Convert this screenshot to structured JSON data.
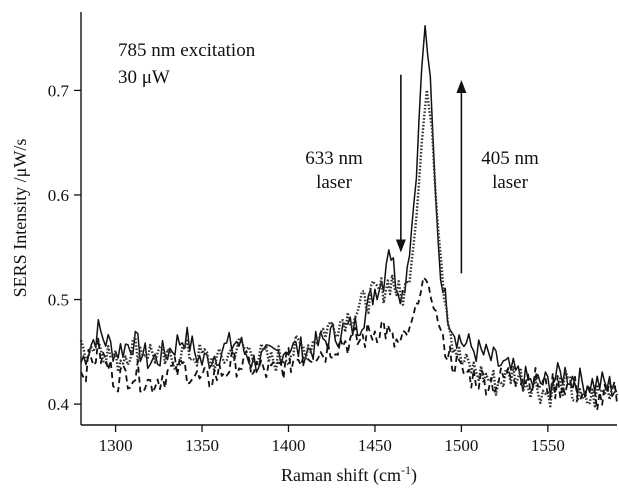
{
  "chart_data": {
    "type": "line",
    "title": "",
    "xlabel": "Raman shift (cm",
    "xlabel_sup": "-1",
    "xlabel_close": ")",
    "ylabel": "SERS Intensity /μW/s",
    "xlim": [
      1280,
      1590
    ],
    "ylim": [
      0.38,
      0.775
    ],
    "x_ticks": [
      1300,
      1350,
      1400,
      1450,
      1500,
      1550
    ],
    "y_ticks": [
      0.4,
      0.5,
      0.6,
      0.7
    ],
    "grid": false,
    "legend": "none",
    "annotations": [
      {
        "id": "excitation",
        "text": "785 nm excitation"
      },
      {
        "id": "power",
        "text": "30 μW"
      },
      {
        "id": "laser633_line1",
        "text": "633 nm"
      },
      {
        "id": "laser633_line2",
        "text": "laser"
      },
      {
        "id": "laser405_line1",
        "text": "405 nm"
      },
      {
        "id": "laser405_line2",
        "text": "laser"
      }
    ],
    "arrows": [
      {
        "id": "down-arrow",
        "x": 1465,
        "y_from": 0.715,
        "y_to": 0.545,
        "direction": "down"
      },
      {
        "id": "up-arrow",
        "x": 1500,
        "y_from": 0.525,
        "y_to": 0.71,
        "direction": "up"
      }
    ],
    "series": [
      {
        "style": "solid",
        "color": "#111111",
        "points": [
          [
            1280,
            0.44
          ],
          [
            1290,
            0.47
          ],
          [
            1300,
            0.45
          ],
          [
            1310,
            0.46
          ],
          [
            1320,
            0.44
          ],
          [
            1330,
            0.45
          ],
          [
            1340,
            0.465
          ],
          [
            1350,
            0.44
          ],
          [
            1360,
            0.45
          ],
          [
            1370,
            0.46
          ],
          [
            1380,
            0.44
          ],
          [
            1390,
            0.445
          ],
          [
            1400,
            0.455
          ],
          [
            1410,
            0.45
          ],
          [
            1420,
            0.46
          ],
          [
            1430,
            0.47
          ],
          [
            1440,
            0.475
          ],
          [
            1445,
            0.49
          ],
          [
            1450,
            0.51
          ],
          [
            1455,
            0.52
          ],
          [
            1458,
            0.555
          ],
          [
            1462,
            0.52
          ],
          [
            1466,
            0.505
          ],
          [
            1470,
            0.545
          ],
          [
            1474,
            0.62
          ],
          [
            1477,
            0.72
          ],
          [
            1479,
            0.76
          ],
          [
            1482,
            0.71
          ],
          [
            1485,
            0.6
          ],
          [
            1488,
            0.52
          ],
          [
            1492,
            0.49
          ],
          [
            1496,
            0.47
          ],
          [
            1500,
            0.46
          ],
          [
            1510,
            0.45
          ],
          [
            1520,
            0.44
          ],
          [
            1530,
            0.43
          ],
          [
            1540,
            0.42
          ],
          [
            1550,
            0.42
          ],
          [
            1560,
            0.43
          ],
          [
            1570,
            0.42
          ],
          [
            1580,
            0.42
          ],
          [
            1590,
            0.415
          ]
        ]
      },
      {
        "style": "dotted",
        "color": "#333333",
        "points": [
          [
            1280,
            0.45
          ],
          [
            1290,
            0.46
          ],
          [
            1300,
            0.44
          ],
          [
            1310,
            0.455
          ],
          [
            1320,
            0.45
          ],
          [
            1330,
            0.44
          ],
          [
            1340,
            0.45
          ],
          [
            1350,
            0.445
          ],
          [
            1360,
            0.44
          ],
          [
            1370,
            0.455
          ],
          [
            1380,
            0.45
          ],
          [
            1390,
            0.44
          ],
          [
            1400,
            0.45
          ],
          [
            1410,
            0.455
          ],
          [
            1420,
            0.47
          ],
          [
            1430,
            0.48
          ],
          [
            1440,
            0.49
          ],
          [
            1445,
            0.5
          ],
          [
            1450,
            0.505
          ],
          [
            1455,
            0.51
          ],
          [
            1460,
            0.52
          ],
          [
            1465,
            0.5
          ],
          [
            1470,
            0.52
          ],
          [
            1474,
            0.58
          ],
          [
            1477,
            0.65
          ],
          [
            1480,
            0.7
          ],
          [
            1483,
            0.66
          ],
          [
            1486,
            0.58
          ],
          [
            1490,
            0.51
          ],
          [
            1495,
            0.46
          ],
          [
            1500,
            0.44
          ],
          [
            1510,
            0.43
          ],
          [
            1520,
            0.42
          ],
          [
            1530,
            0.43
          ],
          [
            1540,
            0.42
          ],
          [
            1550,
            0.41
          ],
          [
            1560,
            0.42
          ],
          [
            1570,
            0.4
          ],
          [
            1580,
            0.41
          ],
          [
            1590,
            0.42
          ]
        ]
      },
      {
        "style": "dashed",
        "color": "#111111",
        "points": [
          [
            1280,
            0.43
          ],
          [
            1290,
            0.45
          ],
          [
            1300,
            0.425
          ],
          [
            1310,
            0.43
          ],
          [
            1320,
            0.42
          ],
          [
            1330,
            0.43
          ],
          [
            1340,
            0.435
          ],
          [
            1350,
            0.42
          ],
          [
            1360,
            0.43
          ],
          [
            1370,
            0.44
          ],
          [
            1380,
            0.435
          ],
          [
            1390,
            0.43
          ],
          [
            1400,
            0.44
          ],
          [
            1410,
            0.45
          ],
          [
            1420,
            0.45
          ],
          [
            1430,
            0.46
          ],
          [
            1440,
            0.46
          ],
          [
            1450,
            0.47
          ],
          [
            1455,
            0.475
          ],
          [
            1460,
            0.46
          ],
          [
            1465,
            0.455
          ],
          [
            1470,
            0.47
          ],
          [
            1475,
            0.5
          ],
          [
            1478,
            0.52
          ],
          [
            1481,
            0.51
          ],
          [
            1484,
            0.495
          ],
          [
            1488,
            0.47
          ],
          [
            1492,
            0.45
          ],
          [
            1496,
            0.44
          ],
          [
            1500,
            0.43
          ],
          [
            1510,
            0.425
          ],
          [
            1520,
            0.42
          ],
          [
            1530,
            0.43
          ],
          [
            1540,
            0.425
          ],
          [
            1550,
            0.415
          ],
          [
            1560,
            0.42
          ],
          [
            1570,
            0.41
          ],
          [
            1580,
            0.405
          ],
          [
            1590,
            0.41
          ]
        ]
      }
    ]
  }
}
